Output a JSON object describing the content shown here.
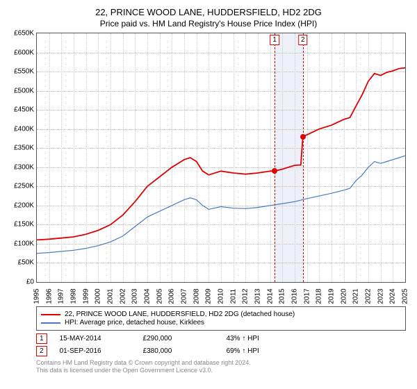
{
  "title": "22, PRINCE WOOD LANE, HUDDERSFIELD, HD2 2DG",
  "subtitle": "Price paid vs. HM Land Registry's House Price Index (HPI)",
  "chart": {
    "type": "line",
    "background_color": "#ffffff",
    "grid_color": "#bbbbbb",
    "y": {
      "label_prefix": "£",
      "min": 0,
      "max": 650000,
      "step": 50000,
      "labels": [
        "£0",
        "£50K",
        "£100K",
        "£150K",
        "£200K",
        "£250K",
        "£300K",
        "£350K",
        "£400K",
        "£450K",
        "£500K",
        "£550K",
        "£600K",
        "£650K"
      ]
    },
    "x": {
      "min": 1995,
      "max": 2025,
      "step": 1,
      "labels": [
        "1995",
        "1996",
        "1997",
        "1998",
        "1999",
        "2000",
        "2001",
        "2002",
        "2003",
        "2004",
        "2005",
        "2006",
        "2007",
        "2008",
        "2009",
        "2010",
        "2011",
        "2012",
        "2013",
        "2014",
        "2015",
        "2016",
        "2017",
        "2018",
        "2019",
        "2020",
        "2021",
        "2022",
        "2023",
        "2024",
        "2025"
      ]
    },
    "shaded_band": {
      "from": 2014.37,
      "to": 2016.67,
      "color": "#eef1f9"
    },
    "series": [
      {
        "name": "22, PRINCE WOOD LANE, HUDDERSFIELD, HD2 2DG (detached house)",
        "color": "#e00000",
        "line_width": 1.8,
        "points": [
          [
            1995,
            110000
          ],
          [
            1996,
            112000
          ],
          [
            1997,
            115000
          ],
          [
            1998,
            118000
          ],
          [
            1999,
            125000
          ],
          [
            2000,
            135000
          ],
          [
            2001,
            150000
          ],
          [
            2002,
            175000
          ],
          [
            2003,
            210000
          ],
          [
            2004,
            250000
          ],
          [
            2005,
            275000
          ],
          [
            2006,
            300000
          ],
          [
            2007,
            320000
          ],
          [
            2007.5,
            325000
          ],
          [
            2008,
            315000
          ],
          [
            2008.5,
            290000
          ],
          [
            2009,
            280000
          ],
          [
            2010,
            290000
          ],
          [
            2011,
            285000
          ],
          [
            2012,
            282000
          ],
          [
            2013,
            285000
          ],
          [
            2014,
            290000
          ],
          [
            2014.37,
            290000
          ],
          [
            2015,
            295000
          ],
          [
            2016,
            305000
          ],
          [
            2016.5,
            306000
          ],
          [
            2016.67,
            380000
          ],
          [
            2017,
            385000
          ],
          [
            2018,
            400000
          ],
          [
            2019,
            410000
          ],
          [
            2020,
            425000
          ],
          [
            2020.5,
            430000
          ],
          [
            2021,
            460000
          ],
          [
            2021.5,
            490000
          ],
          [
            2022,
            525000
          ],
          [
            2022.5,
            545000
          ],
          [
            2023,
            540000
          ],
          [
            2023.5,
            548000
          ],
          [
            2024,
            552000
          ],
          [
            2024.5,
            558000
          ],
          [
            2025,
            560000
          ]
        ]
      },
      {
        "name": "HPI: Average price, detached house, Kirklees",
        "color": "#4a77c4",
        "line_width": 1.2,
        "points": [
          [
            1995,
            75000
          ],
          [
            1996,
            77000
          ],
          [
            1997,
            80000
          ],
          [
            1998,
            83000
          ],
          [
            1999,
            88000
          ],
          [
            2000,
            95000
          ],
          [
            2001,
            105000
          ],
          [
            2002,
            120000
          ],
          [
            2003,
            145000
          ],
          [
            2004,
            170000
          ],
          [
            2005,
            185000
          ],
          [
            2006,
            200000
          ],
          [
            2007,
            215000
          ],
          [
            2007.5,
            220000
          ],
          [
            2008,
            215000
          ],
          [
            2008.5,
            200000
          ],
          [
            2009,
            190000
          ],
          [
            2010,
            197000
          ],
          [
            2011,
            193000
          ],
          [
            2012,
            192000
          ],
          [
            2013,
            195000
          ],
          [
            2014,
            200000
          ],
          [
            2015,
            205000
          ],
          [
            2016,
            210000
          ],
          [
            2017,
            218000
          ],
          [
            2018,
            225000
          ],
          [
            2019,
            232000
          ],
          [
            2020,
            240000
          ],
          [
            2020.5,
            245000
          ],
          [
            2021,
            265000
          ],
          [
            2021.5,
            280000
          ],
          [
            2022,
            300000
          ],
          [
            2022.5,
            315000
          ],
          [
            2023,
            310000
          ],
          [
            2023.5,
            315000
          ],
          [
            2024,
            320000
          ],
          [
            2024.5,
            325000
          ],
          [
            2025,
            330000
          ]
        ]
      }
    ],
    "markers": [
      {
        "x": 2014.37,
        "y": 290000,
        "color": "#e00000",
        "badge": "1"
      },
      {
        "x": 2016.67,
        "y": 380000,
        "color": "#e00000",
        "badge": "2"
      }
    ]
  },
  "legend": {
    "items": [
      {
        "color": "#e00000",
        "label": "22, PRINCE WOOD LANE, HUDDERSFIELD, HD2 2DG (detached house)"
      },
      {
        "color": "#4a77c4",
        "label": "HPI: Average price, detached house, Kirklees"
      }
    ]
  },
  "events": [
    {
      "badge": "1",
      "date": "15-MAY-2014",
      "price": "£290,000",
      "delta": "43% ↑ HPI"
    },
    {
      "badge": "2",
      "date": "01-SEP-2016",
      "price": "£380,000",
      "delta": "69% ↑ HPI"
    }
  ],
  "footnote_l1": "Contains HM Land Registry data © Crown copyright and database right 2024.",
  "footnote_l2": "This data is licensed under the Open Government Licence v3.0."
}
